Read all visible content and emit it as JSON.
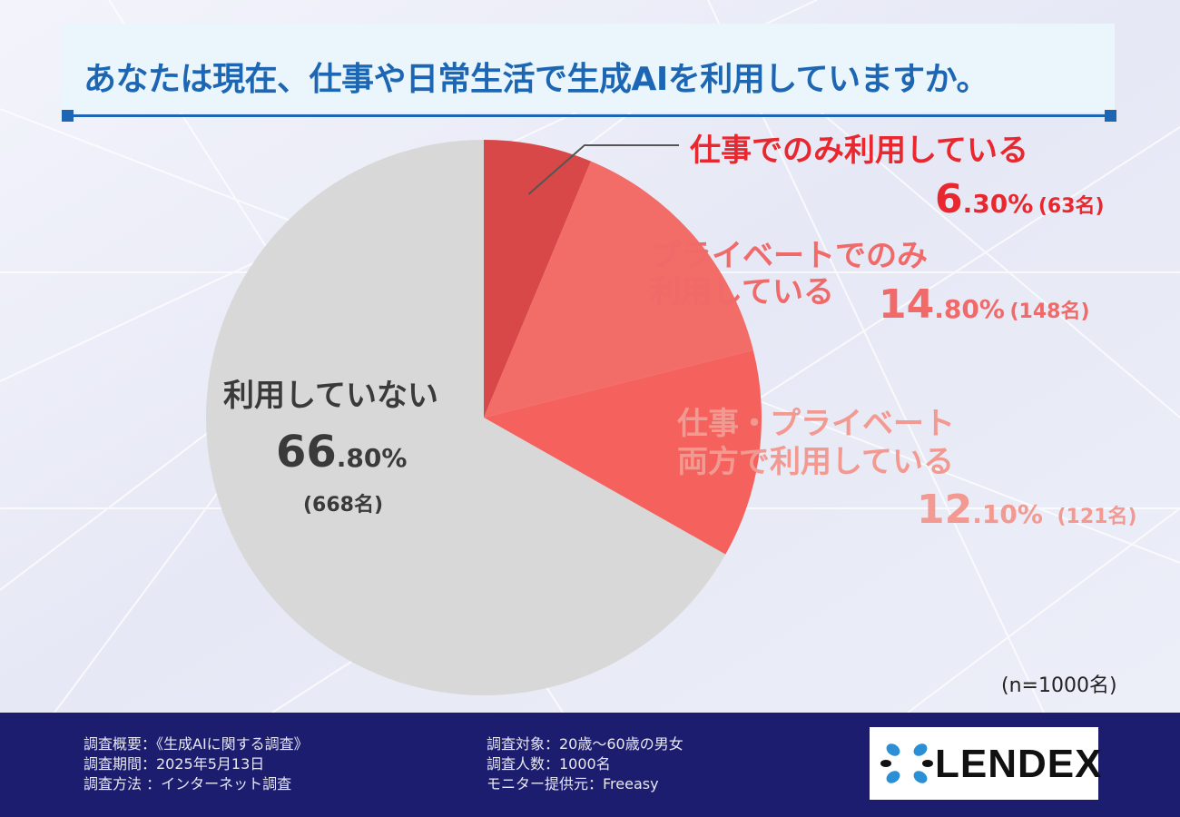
{
  "title": "あなたは現在、仕事や日常生活で生成AIを利用していますか。",
  "chart_data": {
    "type": "pie",
    "title": "あなたは現在、仕事や日常生活で生成AIを利用していますか。",
    "slices": [
      {
        "label": "仕事でのみ利用している",
        "label_lines": [
          "仕事でのみ利用している"
        ],
        "value": 6.3,
        "value_int": "6",
        "value_dec": ".30%",
        "count": "(63名)",
        "color": "#d94848"
      },
      {
        "label": "プライベートでのみ利用している",
        "label_lines": [
          "プライベートでのみ",
          "利用している"
        ],
        "value": 14.8,
        "value_int": "14",
        "value_dec": ".80%",
        "count": "(148名)",
        "color": "#f26c68"
      },
      {
        "label": "仕事・プライベート両方で利用している",
        "label_lines": [
          "仕事・プライベート",
          "両方で利用している"
        ],
        "value": 12.1,
        "value_int": "12",
        "value_dec": ".10%",
        "count": "(121名)",
        "color": "#f5615d"
      },
      {
        "label": "利用していない",
        "label_lines": [
          "利用していない"
        ],
        "value": 66.8,
        "value_int": "66",
        "value_dec": ".80%",
        "count": "(668名)",
        "color": "#d8d8d8"
      }
    ],
    "note": "(n=1000名)"
  },
  "footer": {
    "col1": [
      "調査概要：《生成AIに関する調査》",
      "調査期間：2025年5月13日",
      "調査方法 ：インターネット調査"
    ],
    "col2": [
      "調査対象：20歳〜60歳の男女",
      "調査人数：1000名",
      "モニター提供元：Freeasy"
    ],
    "logo": "LENDEX"
  },
  "colors": {
    "title_blue": "#1c66b3",
    "footer_navy": "#1c1d6e",
    "work_red": "#e8282e",
    "private_red": "#f06a6a",
    "both_pink": "#f29a92",
    "none_gray": "#d8d8d8",
    "logo_blue": "#2b8fd6"
  }
}
